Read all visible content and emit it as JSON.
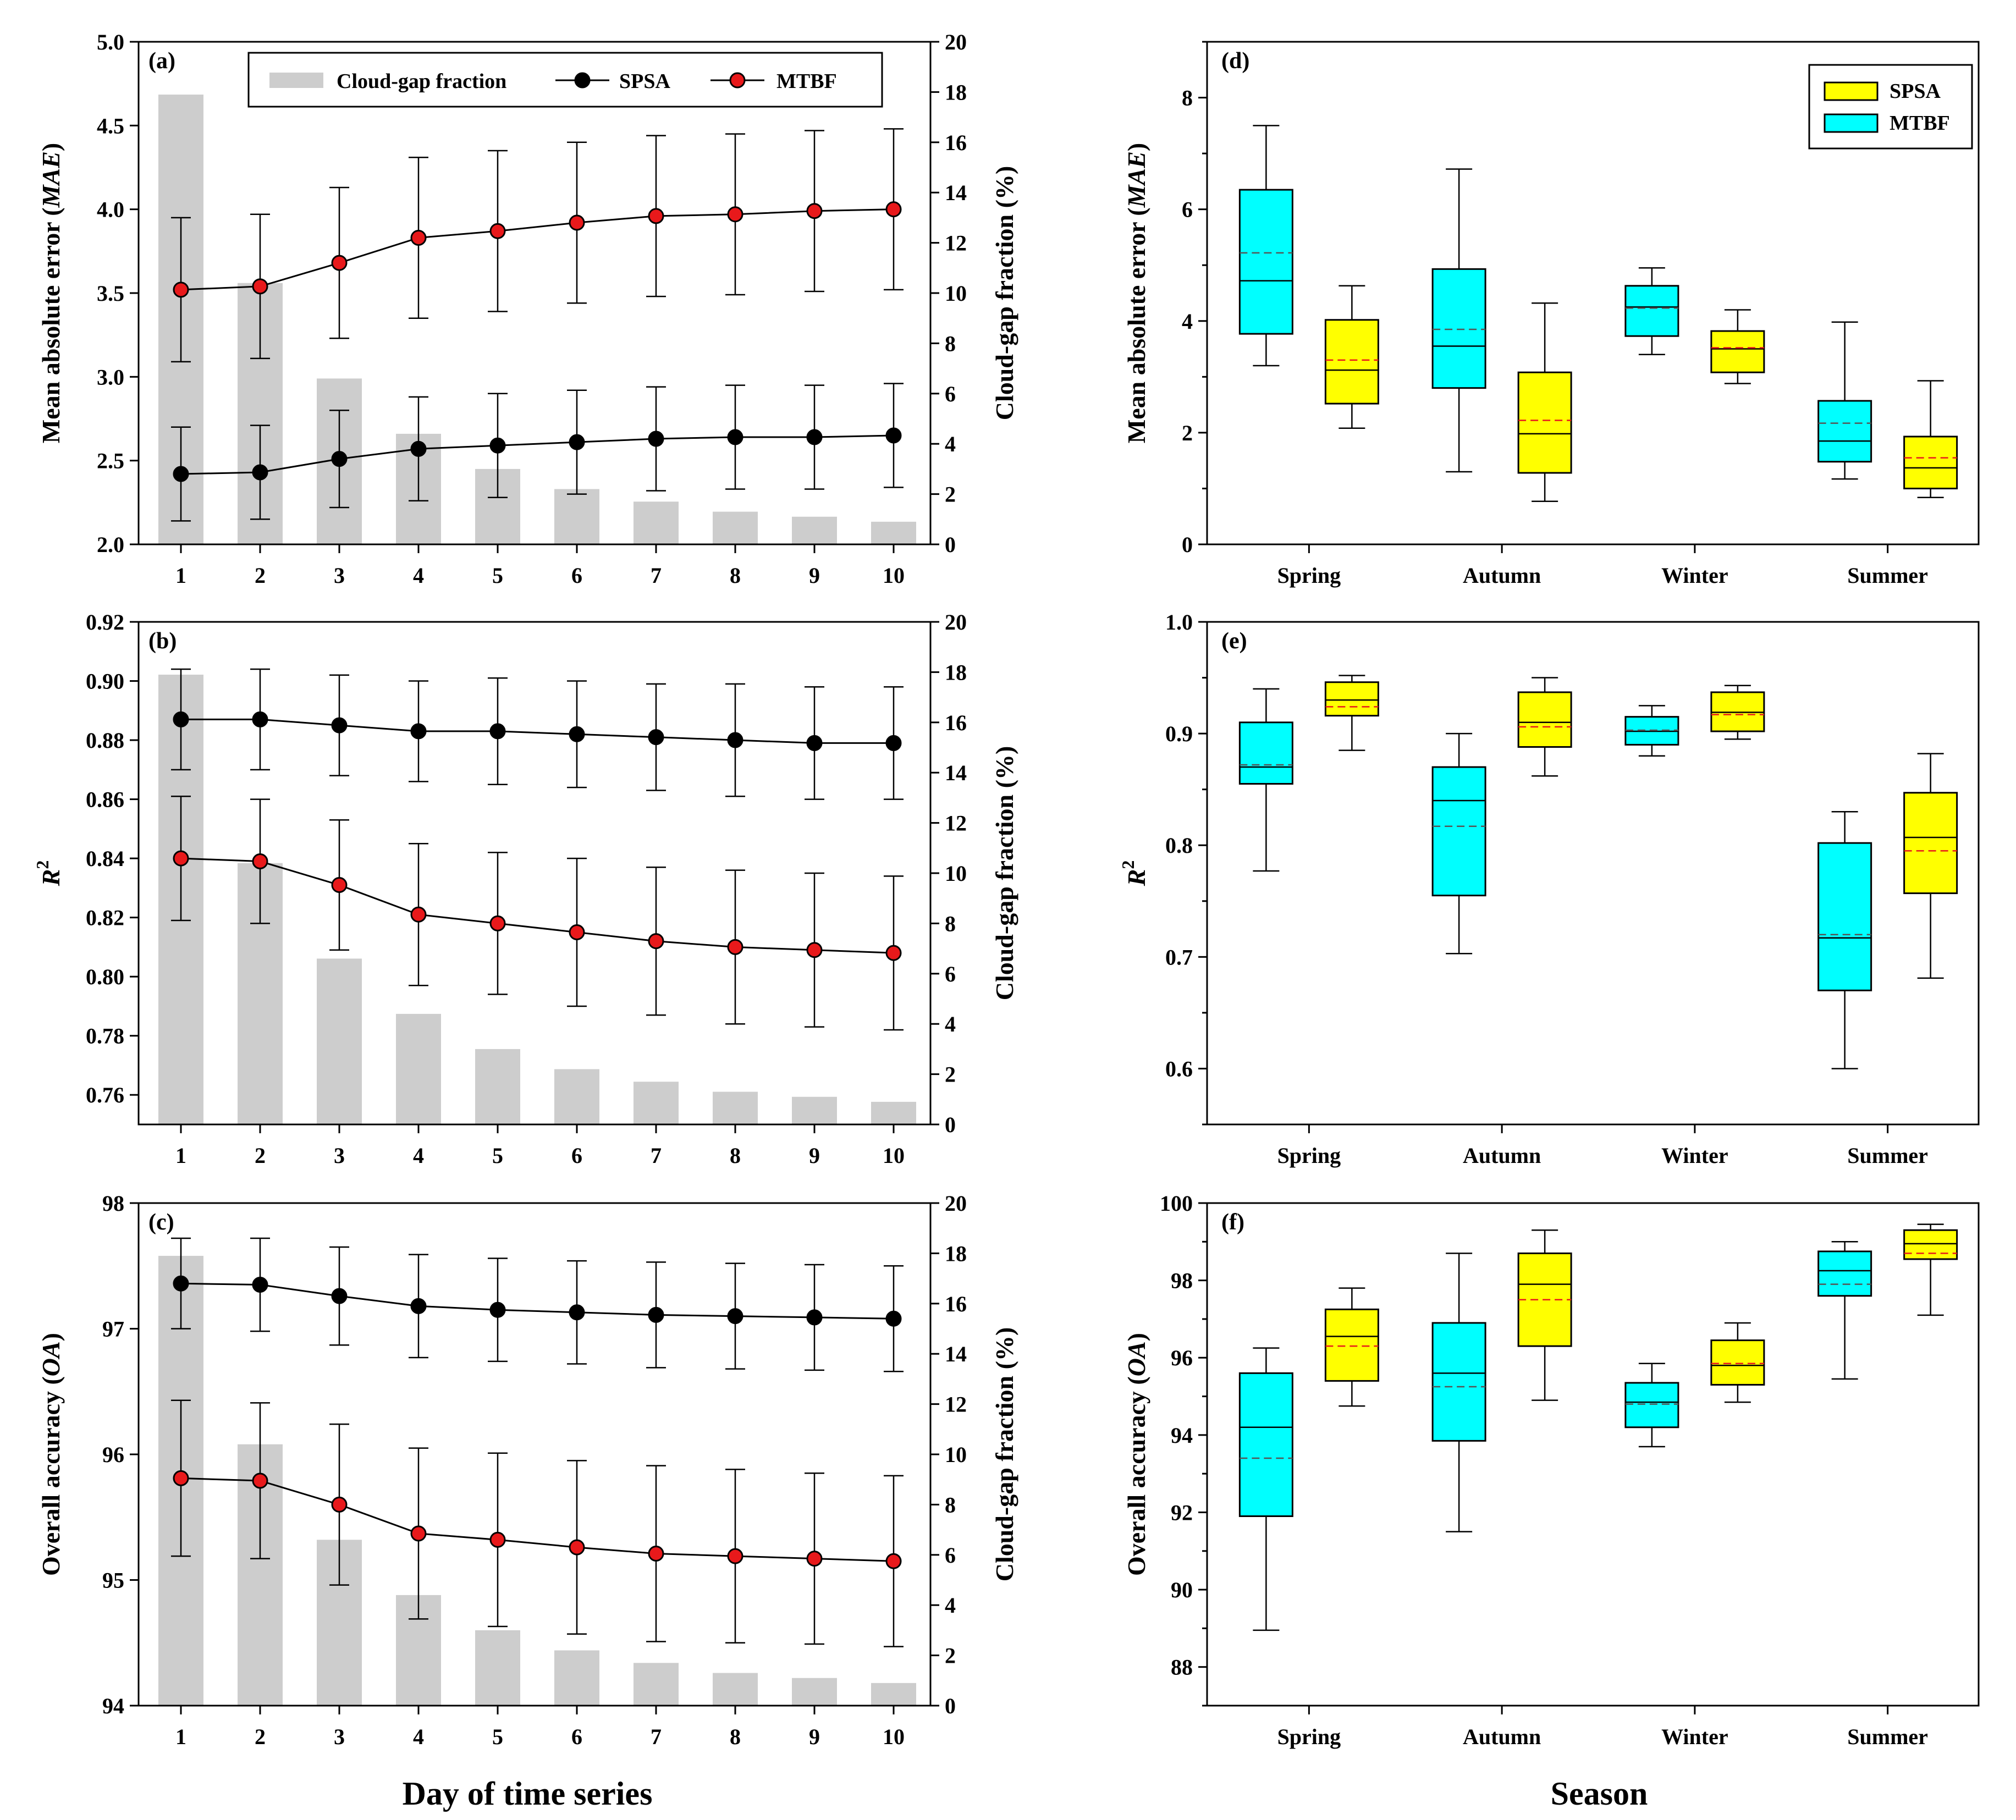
{
  "figure": {
    "x_title_left": "Day of time series",
    "x_title_right": "Season"
  },
  "chart_data": [
    {
      "id": "a",
      "label": "(a)",
      "type": "bar+line",
      "x": [
        1,
        2,
        3,
        4,
        5,
        6,
        7,
        8,
        9,
        10
      ],
      "ylabel_prefix": "Mean absolute error (",
      "ylabel_var": "MAE",
      "ylabel_suffix": ")",
      "ylim": [
        2.0,
        5.0
      ],
      "yticks": [
        "2.0",
        "2.5",
        "3.0",
        "3.5",
        "4.0",
        "4.5",
        "5.0"
      ],
      "y2label": "Cloud-gap fraction (%)",
      "y2lim": [
        0,
        20
      ],
      "y2ticks": [
        "0",
        "2",
        "4",
        "6",
        "8",
        "10",
        "12",
        "14",
        "16",
        "18",
        "20"
      ],
      "bars": [
        17.9,
        10.4,
        6.6,
        4.4,
        3.0,
        2.2,
        1.7,
        1.3,
        1.1,
        0.9
      ],
      "series": [
        {
          "name": "SPSA",
          "color": "#000000",
          "values": [
            2.42,
            2.43,
            2.51,
            2.57,
            2.59,
            2.61,
            2.63,
            2.64,
            2.64,
            2.65
          ],
          "err": [
            0.28,
            0.28,
            0.29,
            0.31,
            0.31,
            0.31,
            0.31,
            0.31,
            0.31,
            0.31
          ]
        },
        {
          "name": "MTBF",
          "color": "#e8191b",
          "values": [
            3.52,
            3.54,
            3.68,
            3.83,
            3.87,
            3.92,
            3.96,
            3.97,
            3.99,
            4.0
          ],
          "err": [
            0.43,
            0.43,
            0.45,
            0.48,
            0.48,
            0.48,
            0.48,
            0.48,
            0.48,
            0.48
          ]
        }
      ],
      "legend": [
        "Cloud-gap fraction",
        "SPSA",
        "MTBF"
      ]
    },
    {
      "id": "b",
      "label": "(b)",
      "type": "bar+line",
      "x": [
        1,
        2,
        3,
        4,
        5,
        6,
        7,
        8,
        9,
        10
      ],
      "ylabel_var": "R",
      "ylabel_sup": "2",
      "ylim": [
        0.75,
        0.92
      ],
      "yticks": [
        "0.76",
        "0.78",
        "0.80",
        "0.82",
        "0.84",
        "0.86",
        "0.88",
        "0.90",
        "0.92"
      ],
      "y2label": "Cloud-gap fraction (%)",
      "y2lim": [
        0,
        20
      ],
      "y2ticks": [
        "0",
        "2",
        "4",
        "6",
        "8",
        "10",
        "12",
        "14",
        "16",
        "18",
        "20"
      ],
      "bars": [
        17.9,
        10.4,
        6.6,
        4.4,
        3.0,
        2.2,
        1.7,
        1.3,
        1.1,
        0.9
      ],
      "series": [
        {
          "name": "SPSA",
          "color": "#000000",
          "values": [
            0.887,
            0.887,
            0.885,
            0.883,
            0.883,
            0.882,
            0.881,
            0.88,
            0.879,
            0.879
          ],
          "err": [
            0.017,
            0.017,
            0.017,
            0.017,
            0.018,
            0.018,
            0.018,
            0.019,
            0.019,
            0.019
          ]
        },
        {
          "name": "MTBF",
          "color": "#e8191b",
          "values": [
            0.84,
            0.839,
            0.831,
            0.821,
            0.818,
            0.815,
            0.812,
            0.81,
            0.809,
            0.808
          ],
          "err": [
            0.021,
            0.021,
            0.022,
            0.024,
            0.024,
            0.025,
            0.025,
            0.026,
            0.026,
            0.026
          ]
        }
      ]
    },
    {
      "id": "c",
      "label": "(c)",
      "type": "bar+line",
      "x": [
        1,
        2,
        3,
        4,
        5,
        6,
        7,
        8,
        9,
        10
      ],
      "ylabel_prefix": "Overall accuracy (",
      "ylabel_var": "OA",
      "ylabel_suffix": ")",
      "ylim": [
        94,
        98
      ],
      "yticks": [
        "94",
        "95",
        "96",
        "97",
        "98"
      ],
      "y2label": "Cloud-gap fraction (%)",
      "y2lim": [
        0,
        20
      ],
      "y2ticks": [
        "0",
        "2",
        "4",
        "6",
        "8",
        "10",
        "12",
        "14",
        "16",
        "18",
        "20"
      ],
      "bars": [
        17.9,
        10.4,
        6.6,
        4.4,
        3.0,
        2.2,
        1.7,
        1.3,
        1.1,
        0.9
      ],
      "series": [
        {
          "name": "SPSA",
          "color": "#000000",
          "values": [
            97.36,
            97.35,
            97.26,
            97.18,
            97.15,
            97.13,
            97.11,
            97.1,
            97.09,
            97.08
          ],
          "err": [
            0.36,
            0.37,
            0.39,
            0.41,
            0.41,
            0.41,
            0.42,
            0.42,
            0.42,
            0.42
          ]
        },
        {
          "name": "MTBF",
          "color": "#e8191b",
          "values": [
            95.81,
            95.79,
            95.6,
            95.37,
            95.32,
            95.26,
            95.21,
            95.19,
            95.17,
            95.15
          ],
          "err": [
            0.62,
            0.62,
            0.64,
            0.68,
            0.69,
            0.69,
            0.7,
            0.69,
            0.68,
            0.68
          ]
        }
      ]
    },
    {
      "id": "d",
      "label": "(d)",
      "type": "boxplot",
      "categories": [
        "Spring",
        "Autumn",
        "Winter",
        "Summer"
      ],
      "ylabel_prefix": "Mean absolute error (",
      "ylabel_var": "MAE",
      "ylabel_suffix": ")",
      "ylim": [
        0,
        9
      ],
      "yticks": [
        "0",
        "2",
        "4",
        "6",
        "8"
      ],
      "legend": [
        "SPSA",
        "MTBF"
      ],
      "series": [
        {
          "name": "MTBF",
          "color": "#00ffff",
          "boxes": [
            {
              "min": 3.2,
              "q1": 3.77,
              "median": 4.72,
              "mean": 5.22,
              "q3": 6.35,
              "max": 7.5
            },
            {
              "min": 1.3,
              "q1": 2.8,
              "median": 3.55,
              "mean": 3.85,
              "q3": 4.93,
              "max": 6.72
            },
            {
              "min": 3.4,
              "q1": 3.73,
              "median": 4.25,
              "mean": 4.23,
              "q3": 4.63,
              "max": 4.95
            },
            {
              "min": 1.17,
              "q1": 1.48,
              "median": 1.85,
              "mean": 2.17,
              "q3": 2.57,
              "max": 3.98
            }
          ]
        },
        {
          "name": "SPSA",
          "color": "#ffff00",
          "boxes": [
            {
              "min": 2.08,
              "q1": 2.52,
              "median": 3.12,
              "mean": 3.3,
              "q3": 4.02,
              "max": 4.63
            },
            {
              "min": 0.77,
              "q1": 1.28,
              "median": 1.98,
              "mean": 2.22,
              "q3": 3.08,
              "max": 4.32
            },
            {
              "min": 2.88,
              "q1": 3.08,
              "median": 3.5,
              "mean": 3.52,
              "q3": 3.82,
              "max": 4.2
            },
            {
              "min": 0.84,
              "q1": 1.0,
              "median": 1.37,
              "mean": 1.55,
              "q3": 1.93,
              "max": 2.93
            }
          ]
        }
      ]
    },
    {
      "id": "e",
      "label": "(e)",
      "type": "boxplot",
      "categories": [
        "Spring",
        "Autumn",
        "Winter",
        "Summer"
      ],
      "ylabel_var": "R",
      "ylabel_sup": "2",
      "ylim": [
        0.55,
        1.0
      ],
      "yticks": [
        "0.6",
        "0.7",
        "0.8",
        "0.9",
        "1.0"
      ],
      "series": [
        {
          "name": "MTBF",
          "color": "#00ffff",
          "boxes": [
            {
              "min": 0.777,
              "q1": 0.855,
              "median": 0.87,
              "mean": 0.872,
              "q3": 0.91,
              "max": 0.94
            },
            {
              "min": 0.703,
              "q1": 0.755,
              "median": 0.84,
              "mean": 0.817,
              "q3": 0.87,
              "max": 0.9
            },
            {
              "min": 0.88,
              "q1": 0.89,
              "median": 0.902,
              "mean": 0.903,
              "q3": 0.915,
              "max": 0.925
            },
            {
              "min": 0.6,
              "q1": 0.67,
              "median": 0.717,
              "mean": 0.72,
              "q3": 0.802,
              "max": 0.83
            }
          ]
        },
        {
          "name": "SPSA",
          "color": "#ffff00",
          "boxes": [
            {
              "min": 0.885,
              "q1": 0.916,
              "median": 0.93,
              "mean": 0.924,
              "q3": 0.946,
              "max": 0.952
            },
            {
              "min": 0.862,
              "q1": 0.888,
              "median": 0.91,
              "mean": 0.906,
              "q3": 0.937,
              "max": 0.95
            },
            {
              "min": 0.895,
              "q1": 0.902,
              "median": 0.919,
              "mean": 0.917,
              "q3": 0.937,
              "max": 0.943
            },
            {
              "min": 0.681,
              "q1": 0.757,
              "median": 0.807,
              "mean": 0.795,
              "q3": 0.847,
              "max": 0.882
            }
          ]
        }
      ]
    },
    {
      "id": "f",
      "label": "(f)",
      "type": "boxplot",
      "categories": [
        "Spring",
        "Autumn",
        "Winter",
        "Summer"
      ],
      "ylabel_prefix": "Overall accuracy (",
      "ylabel_var": "OA",
      "ylabel_suffix": ")",
      "ylim": [
        87,
        100
      ],
      "yticks": [
        "88",
        "90",
        "92",
        "94",
        "96",
        "98",
        "100"
      ],
      "series": [
        {
          "name": "MTBF",
          "color": "#00ffff",
          "boxes": [
            {
              "min": 88.95,
              "q1": 91.9,
              "median": 94.2,
              "mean": 93.4,
              "q3": 95.6,
              "max": 96.25
            },
            {
              "min": 91.5,
              "q1": 93.85,
              "median": 95.6,
              "mean": 95.25,
              "q3": 96.9,
              "max": 98.7
            },
            {
              "min": 93.7,
              "q1": 94.2,
              "median": 94.85,
              "mean": 94.8,
              "q3": 95.35,
              "max": 95.85
            },
            {
              "min": 95.45,
              "q1": 97.6,
              "median": 98.25,
              "mean": 97.9,
              "q3": 98.75,
              "max": 99.0
            }
          ]
        },
        {
          "name": "SPSA",
          "color": "#ffff00",
          "boxes": [
            {
              "min": 94.75,
              "q1": 95.4,
              "median": 96.55,
              "mean": 96.3,
              "q3": 97.25,
              "max": 97.8
            },
            {
              "min": 94.9,
              "q1": 96.3,
              "median": 97.9,
              "mean": 97.5,
              "q3": 98.7,
              "max": 99.3
            },
            {
              "min": 94.85,
              "q1": 95.3,
              "median": 95.8,
              "mean": 95.85,
              "q3": 96.45,
              "max": 96.9
            },
            {
              "min": 97.1,
              "q1": 98.55,
              "median": 98.95,
              "mean": 98.7,
              "q3": 99.3,
              "max": 99.45
            }
          ]
        }
      ]
    }
  ]
}
